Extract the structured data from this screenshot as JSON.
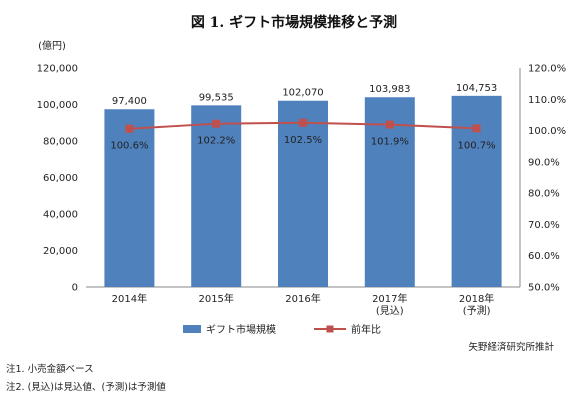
{
  "chart_data": {
    "type": "bar",
    "title": "図 1. ギフト市場規模推移と予測",
    "y_unit_label": "(億円)",
    "categories": [
      [
        "2014年"
      ],
      [
        "2015年"
      ],
      [
        "2016年"
      ],
      [
        "2017年",
        "(見込)"
      ],
      [
        "2018年",
        "(予測)"
      ]
    ],
    "series": [
      {
        "name": "ギフト市場規模",
        "type": "bar",
        "axis": "left",
        "values": [
          97400,
          99535,
          102070,
          103983,
          104753
        ],
        "labels": [
          "97,400",
          "99,535",
          "102,070",
          "103,983",
          "104,753"
        ],
        "color": "#4f81bd"
      },
      {
        "name": "前年比",
        "type": "line",
        "axis": "right",
        "values": [
          100.6,
          102.2,
          102.5,
          101.9,
          100.7
        ],
        "labels": [
          "100.6%",
          "102.2%",
          "102.5%",
          "101.9%",
          "100.7%"
        ],
        "color": "#c0504d"
      }
    ],
    "y_left": {
      "min": 0,
      "max": 120000,
      "ticks": [
        "0",
        "20,000",
        "40,000",
        "60,000",
        "80,000",
        "100,000",
        "120,000"
      ]
    },
    "y_right": {
      "min": 50,
      "max": 120,
      "ticks": [
        "50.0%",
        "60.0%",
        "70.0%",
        "80.0%",
        "90.0%",
        "100.0%",
        "110.0%",
        "120.0%"
      ]
    },
    "grid": false,
    "legend_position": "bottom"
  },
  "notes": [
    "注1.  小売金額ベース",
    "注2.  (見込)は見込値、(予測)は予測値"
  ],
  "credit": "矢野経済研究所推計"
}
